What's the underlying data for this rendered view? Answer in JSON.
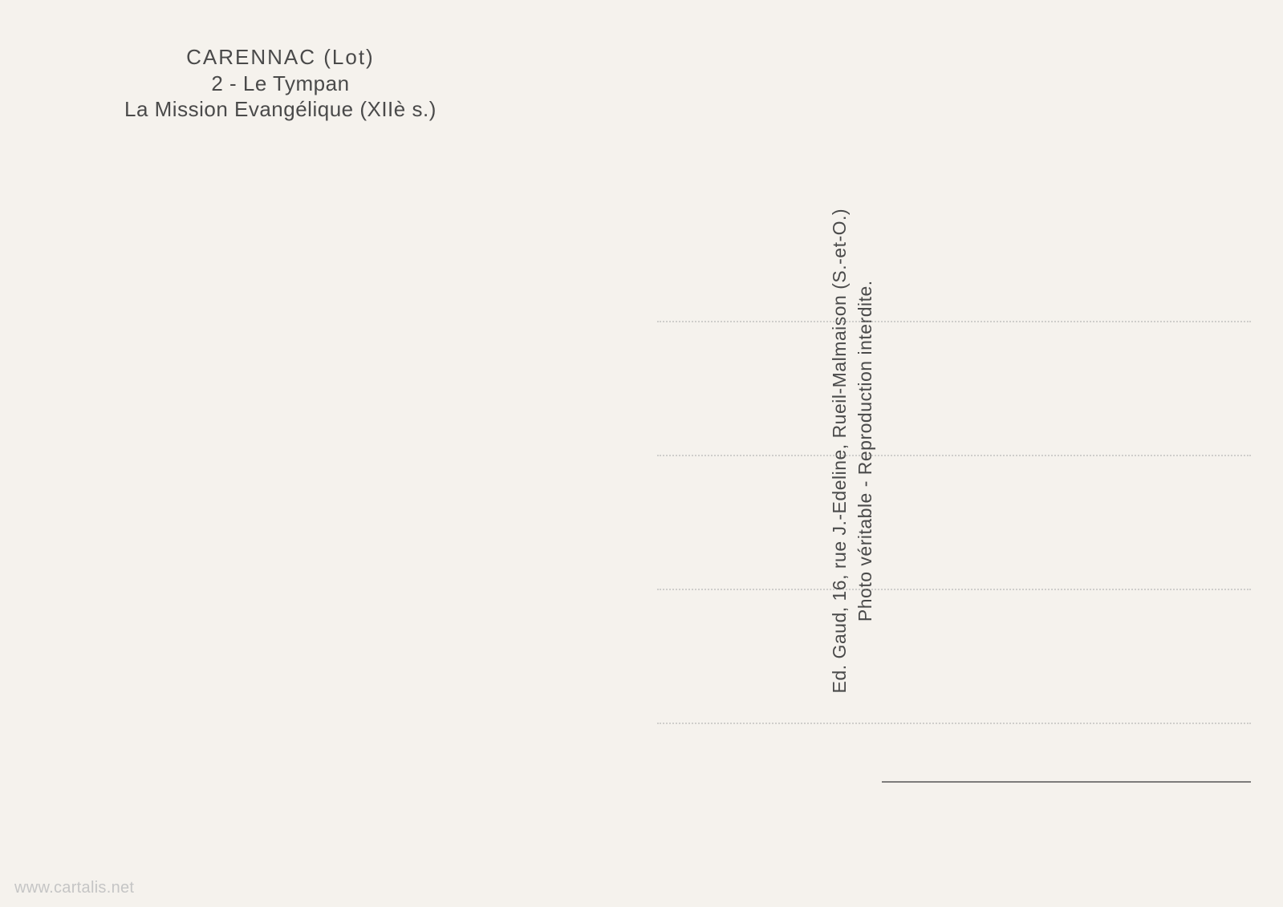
{
  "header": {
    "location": "CARENNAC (Lot)",
    "title": "2 - Le Tympan",
    "subtitle": "La Mission Evangélique (XIIè s.)"
  },
  "publisher": {
    "line1": "Ed. Gaud, 16, rue J.-Edeline, Rueil-Malmaison (S.-et-O.)",
    "line2": "Photo véritable - Reproduction interdite."
  },
  "watermark": "www.cartalis.net",
  "styling": {
    "background_color": "#f5f2ed",
    "text_color": "#4a4a4a",
    "dotted_line_color": "#999999",
    "dotted_line_opacity": 0.4,
    "solid_line_color": "#4a4a4a",
    "watermark_color": "#c5c5c5",
    "header_fontsize": 26,
    "vertical_text_fontsize": 23,
    "watermark_fontsize": 20,
    "address_line_count": 4,
    "address_line_spacing": 165
  }
}
